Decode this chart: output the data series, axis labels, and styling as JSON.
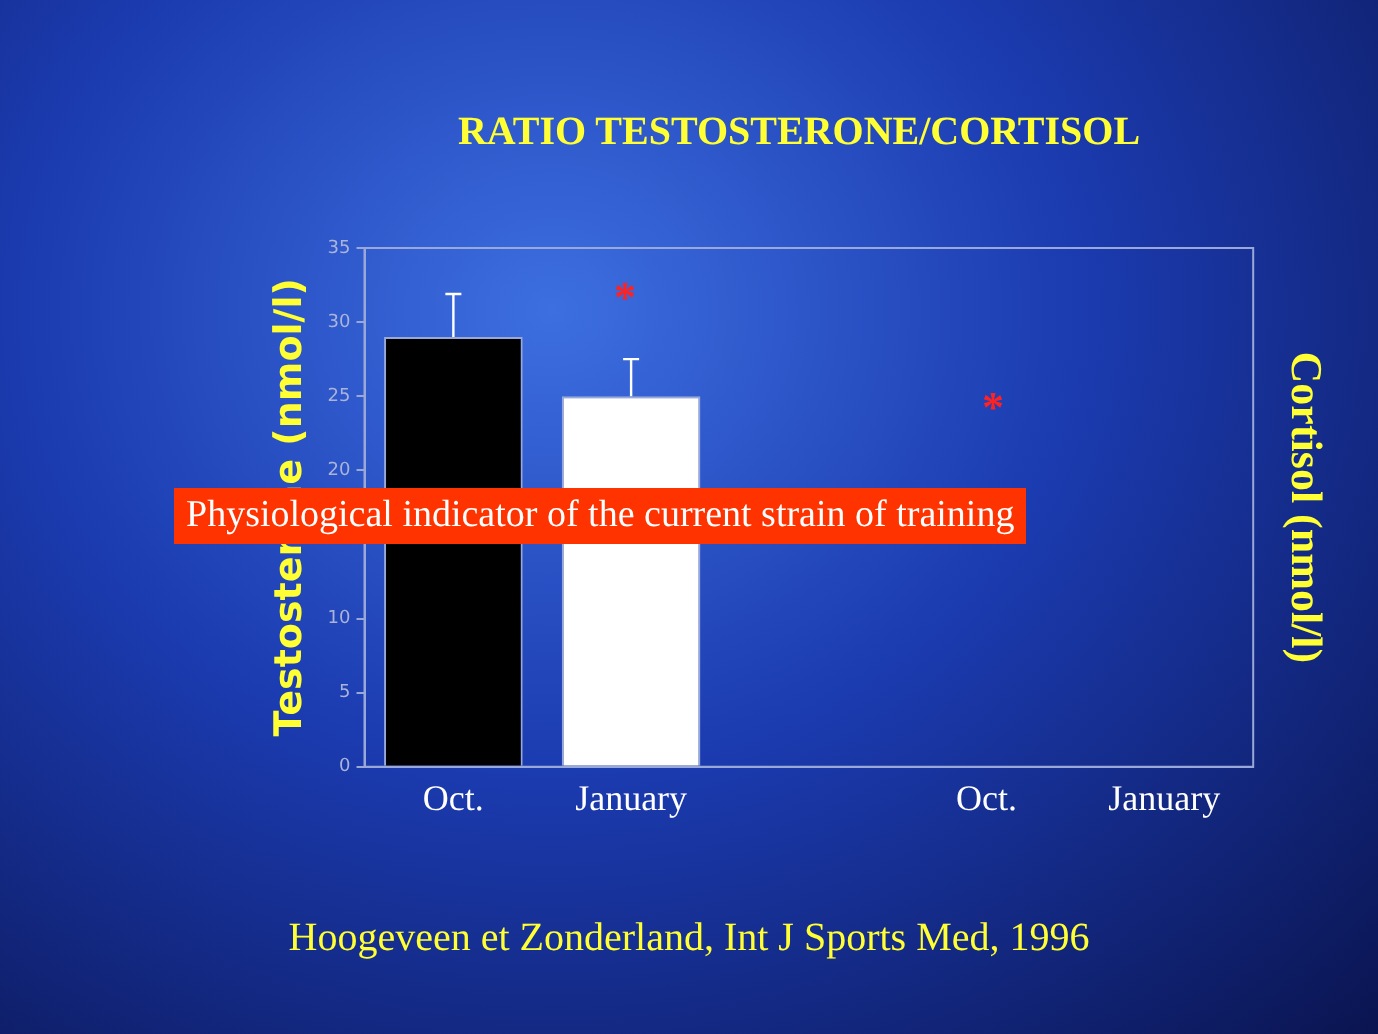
{
  "chart_data": {
    "type": "bar",
    "title": "RATIO TESTOSTERONE/CORTISOL",
    "ylabel": "Testosterone (nmol/l)",
    "y2label": "Cortisol (nmol/l)",
    "categories": [
      "Oct.",
      "January",
      null,
      "Oct.",
      "January"
    ],
    "values": [
      29,
      25,
      null,
      null,
      null
    ],
    "colors": [
      "#000000",
      "#ffffff",
      "#000000",
      "#000000",
      "#ffffff"
    ],
    "errors": [
      [
        29,
        31.9
      ],
      [
        25,
        27.5
      ],
      null,
      null,
      null
    ],
    "ylim": [
      0,
      35
    ],
    "yticks": [
      0,
      5,
      10,
      20,
      25,
      30,
      35
    ],
    "grid": false,
    "legend": false,
    "annotations": [
      "*",
      "*",
      "Physiological indicator of the current strain of training",
      "Hoogeveen et Zonderland, Int J Sports Med, 1996"
    ]
  }
}
